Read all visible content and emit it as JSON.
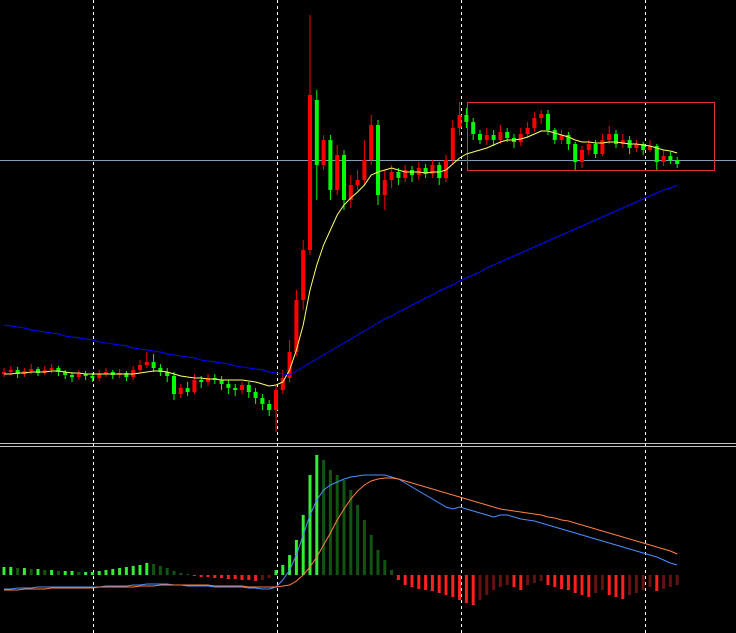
{
  "chart_data": [
    {
      "type": "candlestick",
      "open": [
        66,
        68,
        70,
        66,
        69,
        71,
        67,
        70,
        72,
        68,
        65,
        63,
        66,
        64,
        62,
        66,
        68,
        65,
        67,
        63,
        70,
        75,
        78,
        72,
        68,
        64,
        46,
        52,
        48,
        60,
        58,
        62,
        60,
        56,
        52,
        50,
        55,
        48,
        42,
        36,
        30,
        50,
        62,
        88,
        140,
        190,
        340,
        275,
        300,
        250,
        285,
        240,
        255,
        260,
        280,
        315,
        245,
        260,
        268,
        262,
        270,
        265,
        272,
        266,
        275,
        262,
        280,
        312,
        325,
        318,
        306,
        300,
        305,
        300,
        308,
        302,
        298,
        306,
        312,
        322,
        326,
        310,
        300,
        305,
        296,
        278,
        290,
        296,
        286,
        300,
        306,
        296,
        300,
        292,
        296,
        290,
        294,
        278,
        284,
        280
      ],
      "high": [
        72,
        74,
        73,
        72,
        76,
        73,
        74,
        76,
        74,
        70,
        68,
        70,
        69,
        67,
        70,
        72,
        70,
        71,
        69,
        74,
        80,
        88,
        86,
        76,
        72,
        68,
        56,
        58,
        66,
        64,
        66,
        66,
        64,
        60,
        56,
        58,
        58,
        52,
        46,
        40,
        54,
        70,
        100,
        150,
        200,
        425,
        350,
        305,
        305,
        295,
        290,
        265,
        270,
        300,
        325,
        320,
        270,
        275,
        272,
        275,
        274,
        278,
        276,
        280,
        278,
        285,
        320,
        338,
        332,
        322,
        310,
        312,
        310,
        315,
        312,
        306,
        312,
        318,
        328,
        330,
        330,
        312,
        310,
        308,
        298,
        294,
        300,
        300,
        306,
        314,
        310,
        306,
        304,
        300,
        298,
        300,
        296,
        290,
        288,
        283
      ],
      "low": [
        63,
        65,
        62,
        63,
        66,
        64,
        65,
        67,
        64,
        61,
        58,
        60,
        60,
        58,
        59,
        63,
        61,
        62,
        59,
        60,
        67,
        72,
        68,
        64,
        58,
        40,
        42,
        44,
        46,
        52,
        54,
        56,
        50,
        46,
        44,
        46,
        42,
        36,
        30,
        24,
        8,
        46,
        58,
        84,
        130,
        185,
        240,
        270,
        240,
        245,
        230,
        232,
        250,
        255,
        275,
        235,
        230,
        252,
        255,
        258,
        258,
        260,
        262,
        262,
        255,
        258,
        276,
        305,
        312,
        300,
        296,
        295,
        294,
        296,
        298,
        292,
        294,
        302,
        308,
        316,
        305,
        296,
        296,
        290,
        270,
        272,
        285,
        282,
        284,
        296,
        292,
        292,
        286,
        288,
        285,
        288,
        270,
        274,
        276,
        272
      ],
      "close": [
        68,
        70,
        66,
        69,
        71,
        67,
        70,
        72,
        68,
        65,
        63,
        66,
        64,
        62,
        66,
        68,
        65,
        67,
        63,
        70,
        75,
        78,
        72,
        68,
        64,
        46,
        52,
        48,
        60,
        58,
        62,
        60,
        56,
        52,
        50,
        55,
        48,
        42,
        36,
        30,
        50,
        62,
        88,
        140,
        190,
        345,
        275,
        300,
        250,
        285,
        240,
        255,
        260,
        280,
        315,
        245,
        260,
        268,
        262,
        270,
        265,
        272,
        266,
        275,
        262,
        280,
        312,
        325,
        318,
        306,
        300,
        305,
        300,
        308,
        302,
        298,
        306,
        312,
        322,
        326,
        310,
        300,
        305,
        296,
        278,
        290,
        296,
        286,
        300,
        306,
        296,
        300,
        292,
        296,
        290,
        294,
        278,
        284,
        280,
        276
      ],
      "up_color": "#ff0000",
      "down_color": "#00ff00",
      "ylim": [
        0,
        440
      ],
      "lines": [
        {
          "color": "#ffff66",
          "values": [
            66,
            66,
            67,
            67,
            68,
            68,
            68,
            69,
            69,
            68,
            67,
            67,
            66,
            66,
            66,
            66,
            66,
            66,
            66,
            66,
            67,
            68,
            69,
            69,
            68,
            66,
            64,
            63,
            62,
            62,
            61,
            61,
            60,
            60,
            60,
            60,
            59,
            58,
            56,
            54,
            55,
            58,
            70,
            90,
            115,
            150,
            175,
            195,
            210,
            225,
            235,
            242,
            248,
            255,
            265,
            268,
            270,
            272,
            270,
            268,
            268,
            268,
            267,
            268,
            268,
            270,
            276,
            282,
            286,
            288,
            290,
            292,
            295,
            298,
            300,
            300,
            301,
            303,
            306,
            309,
            309,
            307,
            305,
            303,
            300,
            298,
            298,
            297,
            297,
            298,
            298,
            297,
            296,
            296,
            295,
            294,
            292,
            290,
            289,
            287
          ]
        },
        {
          "color": "#0000ff",
          "values": [
            115,
            114,
            113,
            112,
            110,
            109,
            108,
            107,
            106,
            104,
            103,
            102,
            101,
            100,
            98,
            97,
            96,
            95,
            94,
            92,
            91,
            90,
            89,
            88,
            86,
            85,
            84,
            83,
            82,
            80,
            79,
            78,
            77,
            76,
            74,
            73,
            72,
            71,
            70,
            68,
            67,
            66,
            65,
            69,
            73,
            77,
            81,
            85,
            89,
            93,
            97,
            101,
            105,
            109,
            113,
            117,
            121,
            124,
            128,
            131,
            135,
            138,
            142,
            145,
            149,
            152,
            155,
            159,
            162,
            165,
            168,
            172,
            175,
            178,
            181,
            184,
            187,
            190,
            193,
            196,
            199,
            202,
            205,
            208,
            211,
            214,
            217,
            220,
            223,
            226,
            229,
            232,
            235,
            238,
            241,
            244,
            247,
            250,
            252,
            255
          ]
        }
      ]
    },
    {
      "type": "macd",
      "histogram": [
        8,
        8,
        7,
        7,
        6,
        6,
        5,
        5,
        4,
        4,
        4,
        3,
        3,
        3,
        4,
        5,
        6,
        7,
        8,
        9,
        10,
        12,
        11,
        9,
        7,
        4,
        2,
        1,
        -1,
        -2,
        -2,
        -3,
        -3,
        -4,
        -4,
        -5,
        -5,
        -6,
        -5,
        -3,
        5,
        10,
        20,
        35,
        60,
        100,
        120,
        115,
        105,
        100,
        95,
        85,
        70,
        55,
        40,
        25,
        15,
        5,
        -5,
        -10,
        -12,
        -14,
        -15,
        -16,
        -18,
        -20,
        -22,
        -25,
        -28,
        -30,
        -25,
        -20,
        -15,
        -12,
        -10,
        -12,
        -15,
        -10,
        -8,
        -6,
        -10,
        -12,
        -14,
        -15,
        -18,
        -20,
        -22,
        -18,
        -15,
        -20,
        -22,
        -24,
        -20,
        -18,
        -15,
        -12,
        -16,
        -14,
        -12,
        -10
      ],
      "pos_color": "#33ee33",
      "pos_fade_color": "#115511",
      "neg_color": "#ff2020",
      "neg_fade_color": "#661010",
      "ylim": [
        -58,
        127
      ],
      "lines": [
        {
          "color": "#4a90ff",
          "values": [
            -14,
            -14,
            -13,
            -13,
            -13,
            -12,
            -12,
            -12,
            -12,
            -12,
            -12,
            -12,
            -12,
            -12,
            -12,
            -11,
            -11,
            -11,
            -11,
            -10,
            -10,
            -9,
            -9,
            -9,
            -9,
            -10,
            -10,
            -11,
            -11,
            -11,
            -11,
            -12,
            -12,
            -12,
            -12,
            -12,
            -13,
            -13,
            -14,
            -14,
            -12,
            -5,
            5,
            20,
            40,
            60,
            75,
            85,
            90,
            93,
            96,
            98,
            99,
            100,
            100,
            100,
            100,
            98,
            96,
            92,
            88,
            84,
            80,
            76,
            72,
            68,
            66,
            68,
            66,
            64,
            62,
            60,
            58,
            60,
            60,
            58,
            56,
            55,
            54,
            52,
            50,
            48,
            46,
            44,
            42,
            40,
            38,
            36,
            34,
            32,
            30,
            28,
            26,
            24,
            22,
            20,
            18,
            15,
            12,
            10
          ]
        },
        {
          "color": "#ff8040",
          "values": [
            -15,
            -15,
            -15,
            -14,
            -14,
            -14,
            -14,
            -13,
            -13,
            -13,
            -13,
            -13,
            -13,
            -13,
            -12,
            -12,
            -12,
            -12,
            -12,
            -12,
            -11,
            -11,
            -11,
            -10,
            -10,
            -10,
            -10,
            -10,
            -10,
            -10,
            -10,
            -11,
            -11,
            -11,
            -11,
            -11,
            -12,
            -12,
            -12,
            -12,
            -12,
            -11,
            -10,
            -6,
            0,
            8,
            18,
            30,
            42,
            55,
            66,
            76,
            84,
            90,
            94,
            96,
            97,
            97,
            96,
            94,
            92,
            90,
            88,
            86,
            84,
            82,
            80,
            78,
            76,
            74,
            72,
            70,
            68,
            66,
            65,
            64,
            63,
            62,
            61,
            60,
            58,
            57,
            55,
            54,
            52,
            50,
            48,
            46,
            44,
            42,
            40,
            38,
            36,
            34,
            32,
            30,
            28,
            26,
            24,
            21
          ]
        }
      ]
    }
  ]
}
